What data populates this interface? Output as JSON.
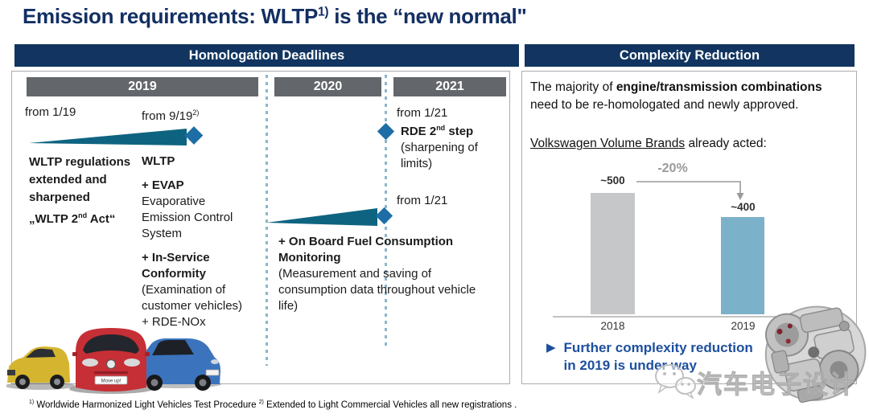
{
  "title": {
    "main": "Emission requirements: WLTP",
    "sup": "1)",
    "rest": " is the “new normal\""
  },
  "headers": {
    "left": "Homologation Deadlines",
    "right": "Complexity Reduction"
  },
  "timeline": {
    "years": [
      "2019",
      "2020",
      "2021"
    ],
    "from_1_19": "from 1/19",
    "from_9_19": "from 9/19",
    "from_9_19_sup": "2)",
    "wltp_jan": "WLTP regulations extended and sharpened",
    "wltp_act_pre": "„WLTP 2",
    "wltp_act_sup": "nd",
    "wltp_act_post": " Act“",
    "wltp_sep": "WLTP",
    "evap_title": "+ EVAP",
    "evap_desc": "Evaporative Emission Control System",
    "isc_title": "+ In-Service Conformity",
    "isc_desc": "(Examination of customer vehicles)",
    "rde_nox": "+ RDE-NOx",
    "from_1_21_a": "from 1/21",
    "rde_pre": "RDE 2",
    "rde_sup": "nd",
    "rde_post": " step",
    "rde_desc": "(sharpening of limits)",
    "from_1_21_b": "from 1/21",
    "obfcm_title": "+ On Board Fuel Consumption Monitoring",
    "obfcm_desc": "(Measurement and saving of consumption data throughout vehicle life)"
  },
  "cars": {
    "red_plate": "Move up!"
  },
  "complexity": {
    "p1_pre": "The majority of ",
    "p1_bold": "engine/transmission combinations",
    "p1_post": " need to be re-homologated and newly approved.",
    "p2_underline": "Volkswagen Volume Brands",
    "p2_rest": " already acted:",
    "bullet_line1": "Further complexity reduction",
    "bullet_line2": "in 2019 is under way",
    "watermark": "汽车电子设计"
  },
  "chart_data": {
    "type": "bar",
    "categories": [
      "2018",
      "2019"
    ],
    "values": [
      500,
      400
    ],
    "value_labels": [
      "~500",
      "~400"
    ],
    "annotation": "-20%",
    "bar_colors": [
      "#c6c7c9",
      "#7cb2c9"
    ],
    "ylim": [
      0,
      550
    ],
    "title": "",
    "xlabel": "",
    "ylabel": "",
    "legend": "none",
    "grid": "off"
  },
  "colors": {
    "navy_header": "#113560",
    "title_navy": "#132f63",
    "year_gray": "#63666b",
    "wedge_teal": "#0e6480",
    "diamond_blue": "#1d6ea6",
    "dotted_line": "#8ab7c9",
    "bullet_blue": "#1d4f9e",
    "annotation_gray": "#9a9a9a"
  },
  "footnote": {
    "sup1": "1)",
    "t1": " Worldwide Harmonized Light Vehicles Test Procedure ",
    "sup2": "2)",
    "t2": " Extended to Light Commercial Vehicles all new registrations ."
  }
}
